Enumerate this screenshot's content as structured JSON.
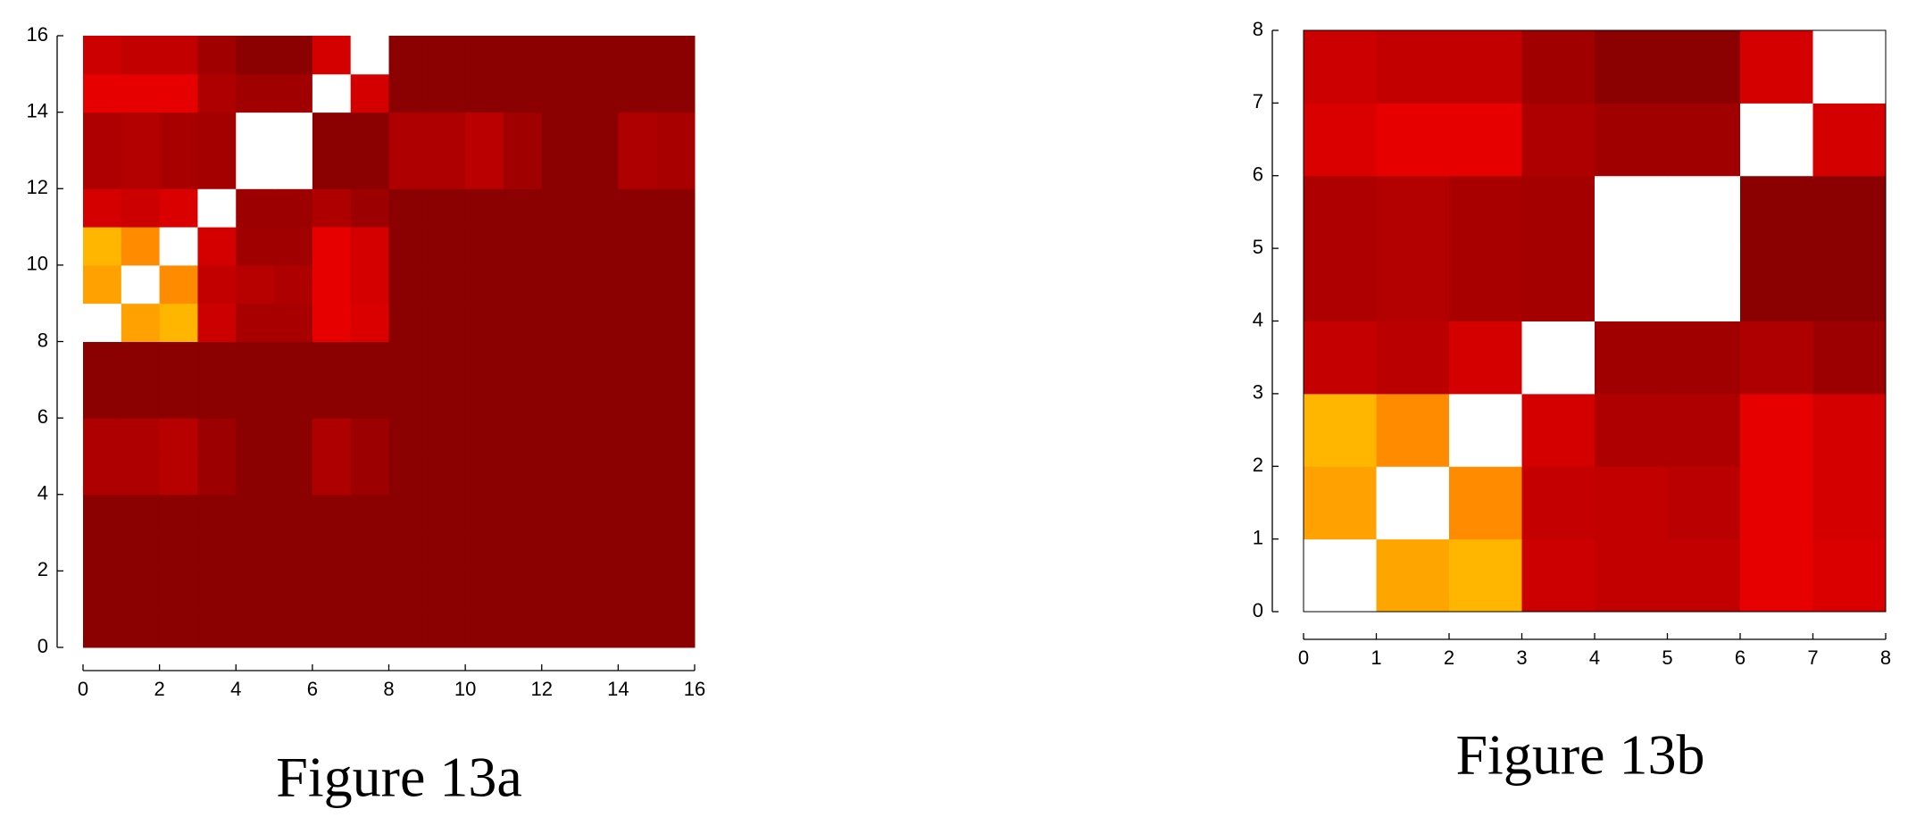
{
  "chart_data": [
    {
      "type": "heatmap",
      "caption": "Figure 13a",
      "xlim": [
        0,
        16
      ],
      "ylim": [
        0,
        16
      ],
      "xticks": [
        0,
        2,
        4,
        6,
        8,
        10,
        12,
        14,
        16
      ],
      "yticks": [
        0,
        2,
        4,
        6,
        8,
        10,
        12,
        14,
        16
      ],
      "clim": [
        0,
        1
      ],
      "colormap": [
        "#8b0000",
        "#e60000",
        "#ff8c00",
        "#ffc000",
        "#ffffff"
      ],
      "z": [
        [
          0,
          0,
          0,
          0,
          0,
          0,
          0,
          0,
          0,
          0,
          0,
          0,
          0,
          0,
          0,
          0
        ],
        [
          0,
          0,
          0,
          0,
          0,
          0,
          0,
          0,
          0,
          0,
          0,
          0,
          0,
          0,
          0,
          0
        ],
        [
          0,
          0,
          0,
          0,
          0,
          0,
          0,
          0,
          0,
          0,
          0,
          0,
          0,
          0,
          0,
          0
        ],
        [
          0,
          0,
          0,
          0,
          0,
          0,
          0,
          0,
          0,
          0,
          0,
          0,
          0,
          0,
          0,
          0
        ],
        [
          0.1,
          0.1,
          0.12,
          0.05,
          0,
          0,
          0.1,
          0.05,
          0,
          0,
          0,
          0,
          0,
          0,
          0,
          0
        ],
        [
          0.1,
          0.1,
          0.12,
          0.05,
          0,
          0,
          0.1,
          0.05,
          0,
          0,
          0,
          0,
          0,
          0,
          0,
          0
        ],
        [
          0,
          0,
          0,
          0,
          0,
          0,
          0,
          0,
          0,
          0,
          0,
          0,
          0,
          0,
          0,
          0
        ],
        [
          0,
          0,
          0,
          0,
          0,
          0,
          0,
          0,
          0,
          0,
          0,
          0,
          0,
          0,
          0,
          0
        ],
        [
          1,
          0.6,
          0.7,
          0.18,
          0.08,
          0.08,
          0.25,
          0.22,
          0,
          0,
          0,
          0,
          0,
          0,
          0,
          0
        ],
        [
          0.6,
          1,
          0.5,
          0.15,
          0.12,
          0.1,
          0.25,
          0.2,
          0,
          0,
          0,
          0,
          0,
          0,
          0,
          0
        ],
        [
          0.7,
          0.5,
          1,
          0.2,
          0.06,
          0.06,
          0.25,
          0.2,
          0,
          0,
          0,
          0,
          0,
          0,
          0,
          0
        ],
        [
          0.2,
          0.18,
          0.22,
          1,
          0.05,
          0.05,
          0.1,
          0.05,
          0,
          0,
          0,
          0,
          0,
          0,
          0,
          0
        ],
        [
          0.1,
          0.11,
          0.08,
          0.07,
          1,
          1,
          0,
          0,
          0.1,
          0.1,
          0.13,
          0.06,
          0,
          0,
          0.1,
          0.08
        ],
        [
          0.1,
          0.11,
          0.08,
          0.07,
          1,
          1,
          0,
          0,
          0.1,
          0.1,
          0.13,
          0.06,
          0,
          0,
          0.1,
          0.08
        ],
        [
          0.25,
          0.25,
          0.25,
          0.1,
          0.06,
          0.06,
          1,
          0.2,
          0,
          0,
          0,
          0,
          0,
          0,
          0,
          0
        ],
        [
          0.18,
          0.15,
          0.15,
          0.06,
          0,
          0,
          0.2,
          1,
          0,
          0,
          0,
          0,
          0,
          0,
          0,
          0
        ]
      ]
    },
    {
      "type": "heatmap",
      "caption": "Figure 13b",
      "xlim": [
        0,
        8
      ],
      "ylim": [
        0,
        8
      ],
      "xticks": [
        0,
        1,
        2,
        3,
        4,
        5,
        6,
        7,
        8
      ],
      "yticks": [
        0,
        1,
        2,
        3,
        4,
        5,
        6,
        7,
        8
      ],
      "clim": [
        0,
        1
      ],
      "colormap": [
        "#8b0000",
        "#e60000",
        "#ff8c00",
        "#ffc000",
        "#ffffff"
      ],
      "z": [
        [
          1,
          0.62,
          0.7,
          0.18,
          0.15,
          0.15,
          0.25,
          0.22
        ],
        [
          0.6,
          1,
          0.5,
          0.16,
          0.15,
          0.13,
          0.25,
          0.2
        ],
        [
          0.7,
          0.5,
          1,
          0.2,
          0.1,
          0.1,
          0.25,
          0.2
        ],
        [
          0.16,
          0.13,
          0.2,
          1,
          0.06,
          0.06,
          0.1,
          0.05
        ],
        [
          0.1,
          0.11,
          0.08,
          0.07,
          1,
          1,
          0,
          0
        ],
        [
          0.1,
          0.11,
          0.08,
          0.07,
          1,
          1,
          0,
          0
        ],
        [
          0.22,
          0.25,
          0.25,
          0.1,
          0.06,
          0.06,
          1,
          0.2
        ],
        [
          0.18,
          0.15,
          0.15,
          0.06,
          0,
          0,
          0.2,
          1
        ]
      ]
    }
  ]
}
